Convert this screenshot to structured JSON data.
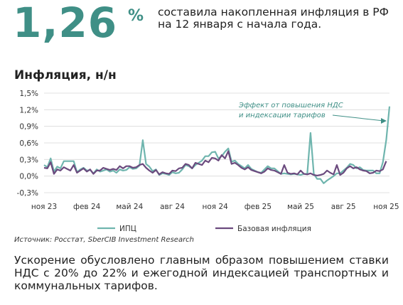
{
  "headline": {
    "value": "1,26",
    "unit": "%",
    "text": "составила накопленная инфляция в РФ на 12 января с начала года."
  },
  "chart_title": "Инфляция, н/н",
  "source": "Источник: Росстат, SberCIB Investment Research",
  "bottom_text": "Ускорение обусловлено главным образом повышением ставки НДС с 20% до 22% и ежегодной индексацией транспортных и коммунальных тарифов.",
  "colors": {
    "accent": "#3f8f86",
    "cpi_line": "#6fb5ae",
    "core_line": "#6b4a7e",
    "grid": "#d9d9d9"
  },
  "chart_data": {
    "type": "line",
    "title": "Инфляция, н/н",
    "ylabel": "",
    "ylim": [
      -0.3,
      1.5
    ],
    "yticks": [
      "1,5%",
      "1,2%",
      "0,9%",
      "0,6%",
      "0,3%",
      "0,0%",
      "-0,3%"
    ],
    "xticks": [
      {
        "label": "ноя 23",
        "week": 0
      },
      {
        "label": "фев 24",
        "week": 13
      },
      {
        "label": "май 24",
        "week": 26
      },
      {
        "label": "авг 24",
        "week": 39
      },
      {
        "label": "ноя 24",
        "week": 52
      },
      {
        "label": "фев 25",
        "week": 65
      },
      {
        "label": "май 25",
        "week": 78
      },
      {
        "label": "авг 25",
        "week": 91
      },
      {
        "label": "ноя 25",
        "week": 104
      }
    ],
    "grid": true,
    "legend_position": "bottom",
    "annotation": "Эффект от повышения НДС и индексации тарифов",
    "series": [
      {
        "name": "ИПЦ",
        "values": [
          0.2,
          0.16,
          0.32,
          0.08,
          0.17,
          0.14,
          0.27,
          0.27,
          0.27,
          0.27,
          0.07,
          0.12,
          0.15,
          0.1,
          0.11,
          0.05,
          0.12,
          0.08,
          0.1,
          0.12,
          0.08,
          0.1,
          0.06,
          0.12,
          0.1,
          0.11,
          0.16,
          0.13,
          0.14,
          0.19,
          0.65,
          0.22,
          0.17,
          0.09,
          0.12,
          0.02,
          0.05,
          0.04,
          0.02,
          0.07,
          0.05,
          0.06,
          0.12,
          0.2,
          0.18,
          0.14,
          0.2,
          0.24,
          0.28,
          0.36,
          0.36,
          0.43,
          0.44,
          0.32,
          0.36,
          0.44,
          0.5,
          0.26,
          0.28,
          0.22,
          0.18,
          0.14,
          0.2,
          0.13,
          0.1,
          0.07,
          0.06,
          0.12,
          0.18,
          0.14,
          0.14,
          0.09,
          0.04,
          0.05,
          0.04,
          0.03,
          0.04,
          0.03,
          0.02,
          0.04,
          0.04,
          0.78,
          0.04,
          -0.05,
          -0.05,
          -0.13,
          -0.08,
          -0.04,
          0.0,
          0.05,
          0.05,
          0.1,
          0.15,
          0.22,
          0.2,
          0.14,
          0.16,
          0.11,
          0.1,
          0.1,
          0.1,
          0.05,
          0.05,
          0.25,
          0.65,
          1.26
        ]
      },
      {
        "name": "Базовая инфляция",
        "values": [
          0.15,
          0.14,
          0.25,
          0.04,
          0.12,
          0.1,
          0.16,
          0.13,
          0.1,
          0.2,
          0.06,
          0.1,
          0.14,
          0.08,
          0.12,
          0.04,
          0.1,
          0.1,
          0.15,
          0.13,
          0.11,
          0.13,
          0.11,
          0.18,
          0.14,
          0.18,
          0.18,
          0.15,
          0.16,
          0.2,
          0.22,
          0.15,
          0.1,
          0.06,
          0.11,
          0.03,
          0.07,
          0.05,
          0.04,
          0.1,
          0.09,
          0.14,
          0.15,
          0.22,
          0.2,
          0.14,
          0.24,
          0.22,
          0.2,
          0.28,
          0.25,
          0.33,
          0.32,
          0.28,
          0.38,
          0.32,
          0.45,
          0.22,
          0.24,
          0.2,
          0.15,
          0.12,
          0.16,
          0.11,
          0.09,
          0.07,
          0.05,
          0.08,
          0.14,
          0.11,
          0.1,
          0.07,
          0.04,
          0.2,
          0.06,
          0.04,
          0.05,
          0.03,
          0.1,
          0.04,
          0.03,
          0.05,
          0.02,
          0.01,
          0.02,
          0.04,
          0.1,
          0.06,
          0.03,
          0.2,
          0.02,
          0.06,
          0.14,
          0.18,
          0.14,
          0.16,
          0.12,
          0.1,
          0.09,
          0.05,
          0.06,
          0.1,
          0.09,
          0.12,
          0.27
        ]
      }
    ]
  }
}
